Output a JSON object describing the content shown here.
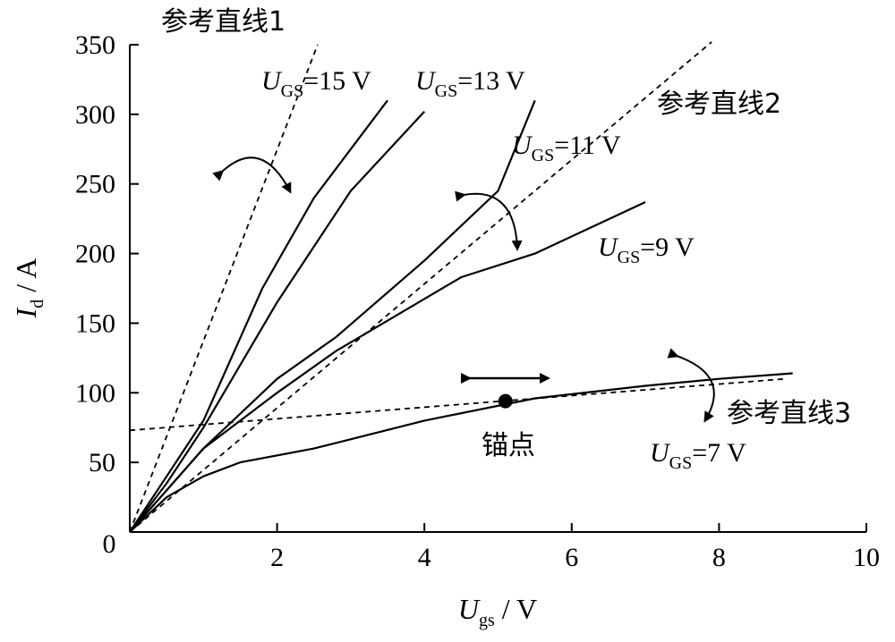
{
  "chart_data": {
    "type": "line",
    "title": "",
    "xlabel": {
      "var": "U",
      "sub": "gs",
      "unit": " / V"
    },
    "ylabel": {
      "var": "I",
      "sub": "d",
      "unit": " / A"
    },
    "xlim": [
      0,
      10
    ],
    "ylim": [
      0,
      350
    ],
    "xticks": [
      2,
      4,
      6,
      8,
      10
    ],
    "yticks": [
      50,
      100,
      150,
      200,
      250,
      300,
      350
    ],
    "origin_label": "0",
    "grid": false,
    "series": [
      {
        "label": {
          "var": "U",
          "sub": "GS",
          "value": "=15 V"
        },
        "points": [
          [
            0,
            0
          ],
          [
            0.5,
            40
          ],
          [
            1,
            80
          ],
          [
            1.8,
            175
          ],
          [
            2.5,
            240
          ],
          [
            3.5,
            310
          ]
        ]
      },
      {
        "label": {
          "var": "U",
          "sub": "GS",
          "value": "=13 V"
        },
        "points": [
          [
            0,
            0
          ],
          [
            0.5,
            35
          ],
          [
            1,
            75
          ],
          [
            2,
            165
          ],
          [
            3,
            245
          ],
          [
            4,
            302
          ]
        ]
      },
      {
        "label": {
          "var": "U",
          "sub": "GS",
          "value": "=11 V"
        },
        "points": [
          [
            0,
            0
          ],
          [
            0.5,
            30
          ],
          [
            1,
            60
          ],
          [
            2,
            110
          ],
          [
            2.8,
            140
          ],
          [
            4,
            195
          ],
          [
            5,
            245
          ],
          [
            5.5,
            310
          ]
        ]
      },
      {
        "label": {
          "var": "U",
          "sub": "GS",
          "value": "=9 V"
        },
        "points": [
          [
            0,
            0
          ],
          [
            0.5,
            30
          ],
          [
            1,
            60
          ],
          [
            2,
            100
          ],
          [
            2.8,
            130
          ],
          [
            4.5,
            183
          ],
          [
            5.5,
            200
          ],
          [
            7,
            237
          ]
        ]
      },
      {
        "label": {
          "var": "U",
          "sub": "GS",
          "value": "=7 V"
        },
        "points": [
          [
            0,
            0
          ],
          [
            0.5,
            25
          ],
          [
            1,
            40
          ],
          [
            1.5,
            50
          ],
          [
            2.5,
            60
          ],
          [
            4,
            80
          ],
          [
            5.5,
            96
          ],
          [
            7,
            105
          ],
          [
            8,
            110
          ],
          [
            9,
            114
          ]
        ]
      }
    ],
    "reference_lines": [
      {
        "label": "参考直线1",
        "points": [
          [
            0,
            0
          ],
          [
            2.55,
            350
          ]
        ]
      },
      {
        "label": "参考直线2",
        "points": [
          [
            0,
            0
          ],
          [
            7.9,
            352
          ]
        ]
      },
      {
        "label": "参考直线3",
        "points": [
          [
            0,
            73
          ],
          [
            8.9,
            110
          ]
        ]
      }
    ],
    "anchor": {
      "label": "锚点",
      "point": [
        5.1,
        94
      ]
    }
  }
}
